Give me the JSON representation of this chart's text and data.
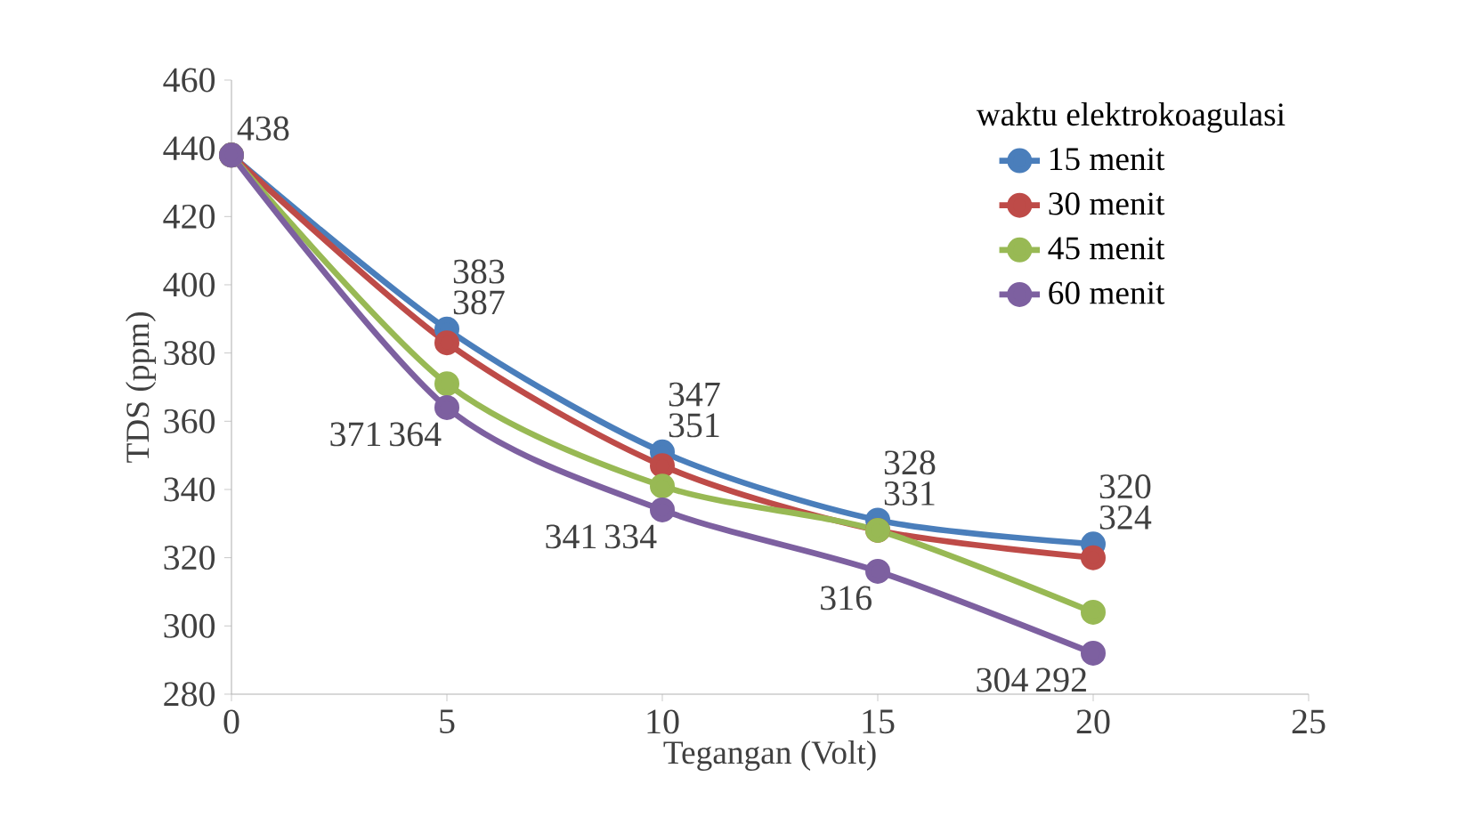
{
  "chart_data": {
    "type": "line",
    "xlabel": "Tegangan (Volt)",
    "ylabel": "TDS (ppm)",
    "legend_title": "waktu elektrokoagulasi",
    "x": [
      0,
      5,
      10,
      15,
      20
    ],
    "series": [
      {
        "name": "15 menit",
        "color": "#4a7ebb",
        "values": [
          438,
          387,
          351,
          331,
          324
        ],
        "value_labels": [
          "438",
          "387",
          "351",
          "331",
          "324"
        ]
      },
      {
        "name": "30 menit",
        "color": "#be4b48",
        "values": [
          438,
          383,
          347,
          328,
          320
        ],
        "value_labels": [
          null,
          "383",
          "347",
          "328",
          "320"
        ]
      },
      {
        "name": "45 menit",
        "color": "#98b954",
        "values": [
          438,
          371,
          341,
          328,
          304
        ],
        "value_labels": [
          null,
          "371",
          "341",
          null,
          "304"
        ]
      },
      {
        "name": "60 menit",
        "color": "#7d60a0",
        "values": [
          438,
          364,
          334,
          316,
          292
        ],
        "value_labels": [
          null,
          "364",
          "334",
          "316",
          "292"
        ]
      }
    ],
    "xlim": [
      0,
      25
    ],
    "xticks": [
      0,
      5,
      10,
      15,
      20,
      25
    ],
    "ylim": [
      280,
      460
    ],
    "yticks": [
      280,
      300,
      320,
      340,
      360,
      380,
      400,
      420,
      440,
      460
    ],
    "grid": false,
    "legend": "top right",
    "marker": "circle",
    "line_style": "solid"
  }
}
